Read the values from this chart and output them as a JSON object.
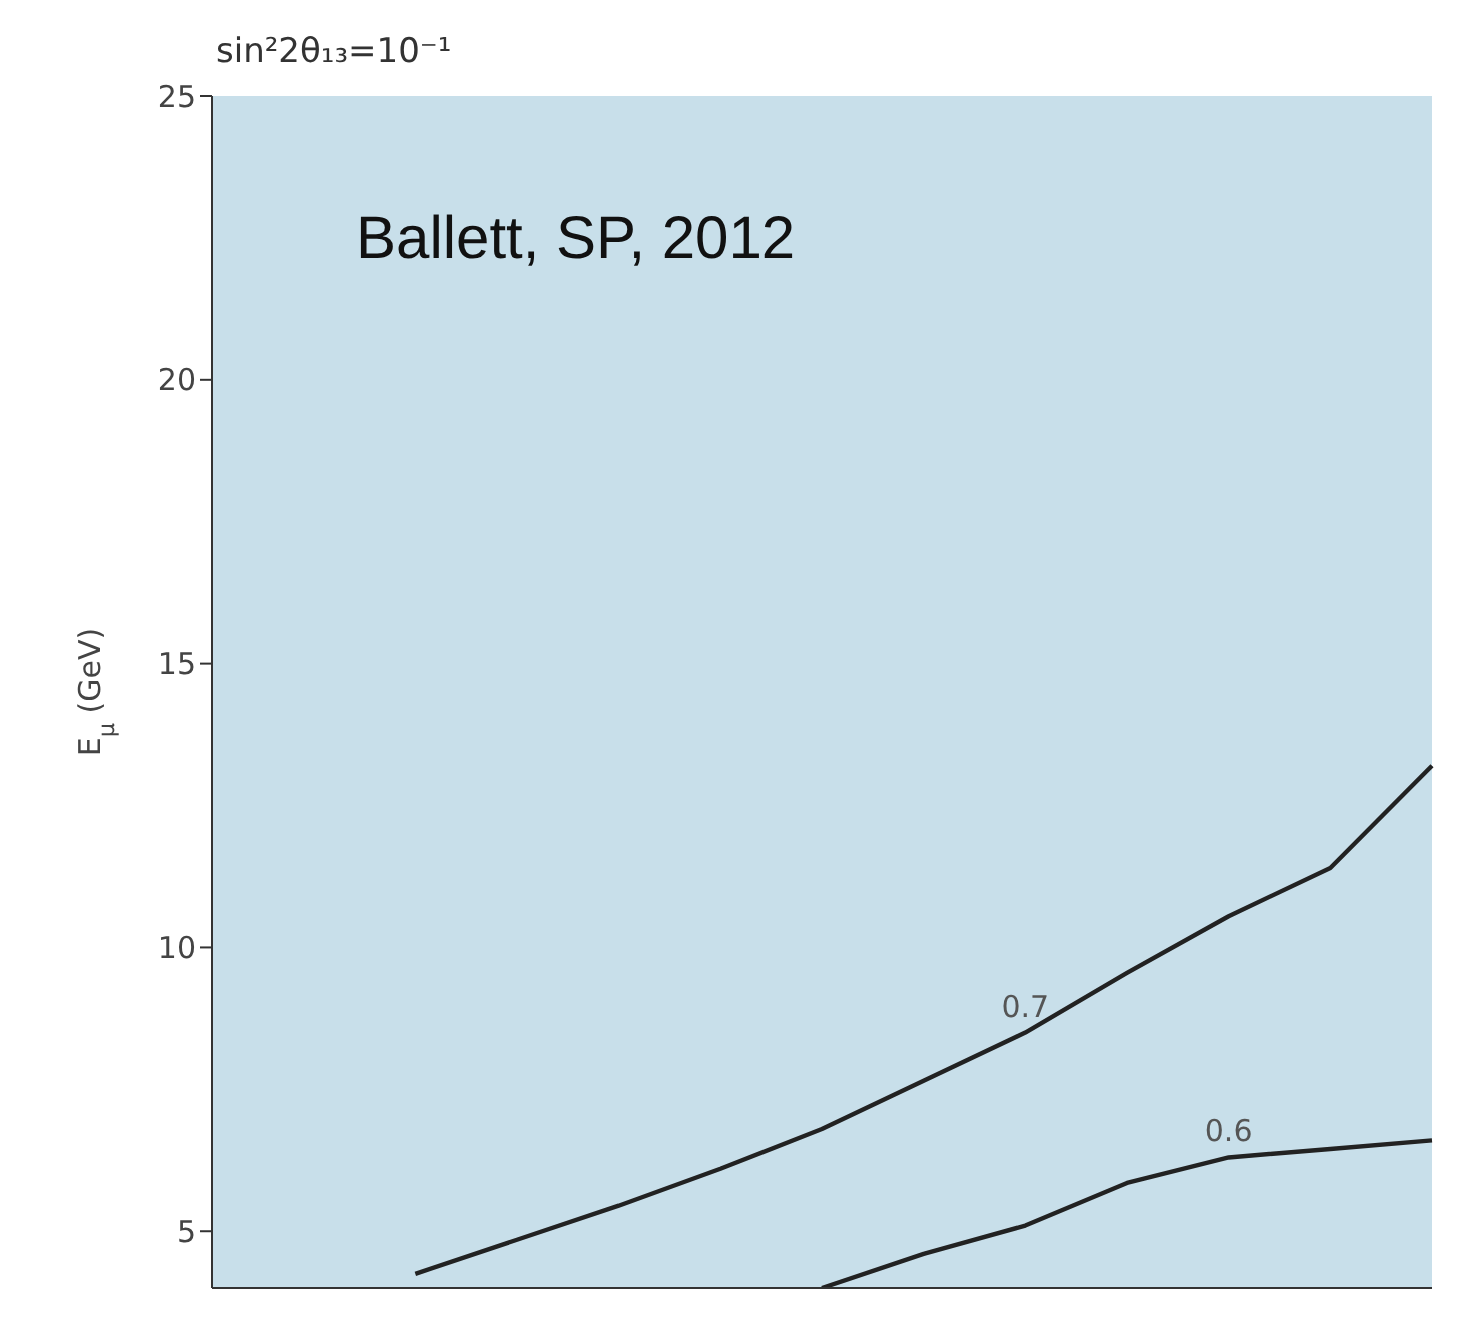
{
  "chart_data": {
    "type": "line",
    "title": "sin²2θ₁₃=10⁻¹",
    "ylabel": "E$_{μ}$ (GeV)",
    "annotations": [
      "Ballett, SP, 2012"
    ],
    "categories": [
      null,
      null,
      null,
      null,
      null,
      null,
      null,
      null,
      null,
      null,
      null,
      null,
      null
    ],
    "series": [
      {
        "name": "0.7",
        "color": "#222222",
        "values": [
          null,
          null,
          4.25,
          4.85,
          5.45,
          6.1,
          6.8,
          7.65,
          8.5,
          9.55,
          10.55,
          11.4,
          13.2
        ]
      },
      {
        "name": "0.6",
        "color": "#222222",
        "values": [
          null,
          null,
          null,
          null,
          null,
          null,
          4.0,
          4.6,
          5.1,
          5.85,
          6.3,
          6.45,
          6.6
        ]
      }
    ],
    "ylim": [
      4,
      25
    ],
    "yticks": [
      5,
      10,
      15,
      20,
      25
    ],
    "tick_labels": "y",
    "grid": false,
    "legend": false,
    "marker": "none",
    "line_style": "solid"
  }
}
